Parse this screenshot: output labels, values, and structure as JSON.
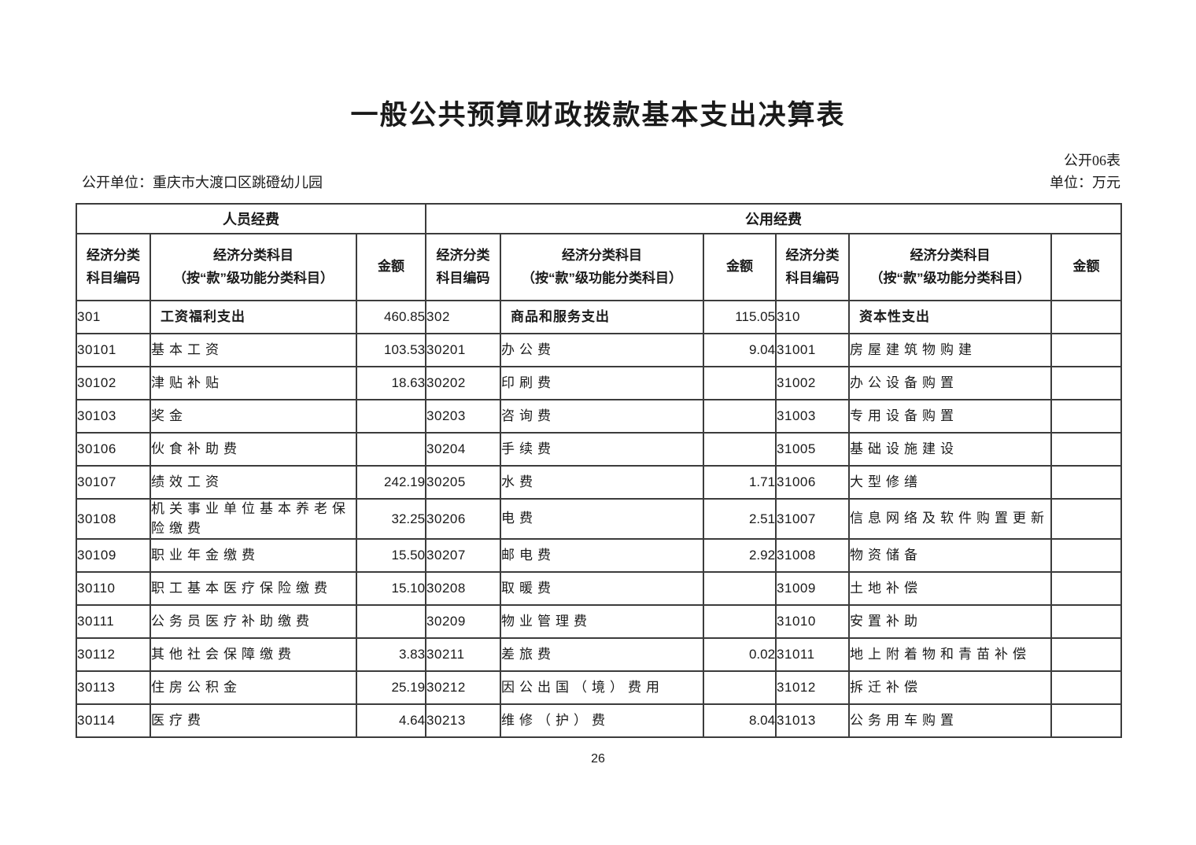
{
  "document": {
    "title": "一般公共预算财政拨款基本支出决算表",
    "table_code": "公开06表",
    "unit_label": "公开单位：重庆市大渡口区跳磴幼儿园",
    "currency_note": "单位：万元",
    "page_number": "26"
  },
  "table": {
    "group_headers": {
      "personnel": "人员经费",
      "public": "公用经费"
    },
    "column_headers": {
      "code": "经济分类\n科目编码",
      "subject": "经济分类科目\n（按“款”级功能分类科目）",
      "amount": "金额"
    },
    "sections": [
      {
        "name": "personnel-expenses",
        "rows": [
          {
            "code": "301",
            "subject": "工资福利支出",
            "amount": "460.85",
            "bold": true
          },
          {
            "code": "30101",
            "subject": "基本工资",
            "amount": "103.53",
            "bold": false
          },
          {
            "code": "30102",
            "subject": "津贴补贴",
            "amount": "18.63",
            "bold": false
          },
          {
            "code": "30103",
            "subject": "奖金",
            "amount": "",
            "bold": false
          },
          {
            "code": "30106",
            "subject": "伙食补助费",
            "amount": "",
            "bold": false
          },
          {
            "code": "30107",
            "subject": "绩效工资",
            "amount": "242.19",
            "bold": false
          },
          {
            "code": "30108",
            "subject": "机关事业单位基本养老保险缴费",
            "amount": "32.25",
            "bold": false
          },
          {
            "code": "30109",
            "subject": "职业年金缴费",
            "amount": "15.50",
            "bold": false
          },
          {
            "code": "30110",
            "subject": "职工基本医疗保险缴费",
            "amount": "15.10",
            "bold": false
          },
          {
            "code": "30111",
            "subject": "公务员医疗补助缴费",
            "amount": "",
            "bold": false
          },
          {
            "code": "30112",
            "subject": "其他社会保障缴费",
            "amount": "3.83",
            "bold": false
          },
          {
            "code": "30113",
            "subject": "住房公积金",
            "amount": "25.19",
            "bold": false
          },
          {
            "code": "30114",
            "subject": "医疗费",
            "amount": "4.64",
            "bold": false
          }
        ]
      },
      {
        "name": "public-expenses-goods-services",
        "rows": [
          {
            "code": "302",
            "subject": "商品和服务支出",
            "amount": "115.05",
            "bold": true
          },
          {
            "code": "30201",
            "subject": "办公费",
            "amount": "9.04",
            "bold": false
          },
          {
            "code": "30202",
            "subject": "印刷费",
            "amount": "",
            "bold": false
          },
          {
            "code": "30203",
            "subject": "咨询费",
            "amount": "",
            "bold": false
          },
          {
            "code": "30204",
            "subject": "手续费",
            "amount": "",
            "bold": false
          },
          {
            "code": "30205",
            "subject": "水费",
            "amount": "1.71",
            "bold": false
          },
          {
            "code": "30206",
            "subject": "电费",
            "amount": "2.51",
            "bold": false
          },
          {
            "code": "30207",
            "subject": "邮电费",
            "amount": "2.92",
            "bold": false
          },
          {
            "code": "30208",
            "subject": "取暖费",
            "amount": "",
            "bold": false
          },
          {
            "code": "30209",
            "subject": "物业管理费",
            "amount": "",
            "bold": false
          },
          {
            "code": "30211",
            "subject": "差旅费",
            "amount": "0.02",
            "bold": false
          },
          {
            "code": "30212",
            "subject": "因公出国（境）费用",
            "amount": "",
            "bold": false
          },
          {
            "code": "30213",
            "subject": "维修（护）费",
            "amount": "8.04",
            "bold": false
          }
        ]
      },
      {
        "name": "public-expenses-capital",
        "rows": [
          {
            "code": "310",
            "subject": "资本性支出",
            "amount": "",
            "bold": true
          },
          {
            "code": "31001",
            "subject": "房屋建筑物购建",
            "amount": "",
            "bold": false
          },
          {
            "code": "31002",
            "subject": "办公设备购置",
            "amount": "",
            "bold": false
          },
          {
            "code": "31003",
            "subject": "专用设备购置",
            "amount": "",
            "bold": false
          },
          {
            "code": "31005",
            "subject": "基础设施建设",
            "amount": "",
            "bold": false
          },
          {
            "code": "31006",
            "subject": "大型修缮",
            "amount": "",
            "bold": false
          },
          {
            "code": "31007",
            "subject": "信息网络及软件购置更新",
            "amount": "",
            "bold": false
          },
          {
            "code": "31008",
            "subject": "物资储备",
            "amount": "",
            "bold": false
          },
          {
            "code": "31009",
            "subject": "土地补偿",
            "amount": "",
            "bold": false
          },
          {
            "code": "31010",
            "subject": "安置补助",
            "amount": "",
            "bold": false
          },
          {
            "code": "31011",
            "subject": "地上附着物和青苗补偿",
            "amount": "",
            "bold": false
          },
          {
            "code": "31012",
            "subject": "拆迁补偿",
            "amount": "",
            "bold": false
          },
          {
            "code": "31013",
            "subject": "公务用车购置",
            "amount": "",
            "bold": false
          }
        ]
      }
    ]
  }
}
